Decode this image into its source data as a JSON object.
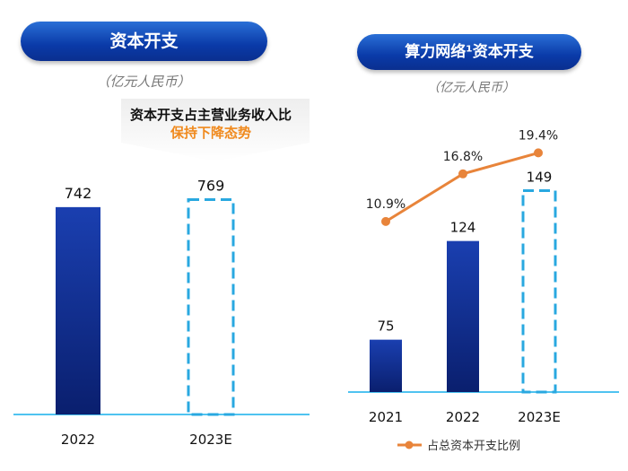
{
  "left": {
    "title": "资本开支",
    "unit": "（亿元人民币）",
    "note_line1": "资本开支占主营业务收入比",
    "note_line2": "保持下降态势"
  },
  "right": {
    "title": "算力网络¹资本开支",
    "unit": "（亿元人民币）",
    "legend": "占总资本开支比例"
  },
  "colors": {
    "bar": "#0d2a8a",
    "dashed": "#29a8e0",
    "line": "#e8843a",
    "note2": "#f08a1e"
  },
  "chart_data": [
    {
      "type": "bar",
      "categories": [
        "2022",
        "2023E"
      ],
      "values": [
        742,
        769
      ],
      "labels": [
        "742",
        "769"
      ],
      "styles": [
        "solid",
        "dashed"
      ]
    },
    {
      "type": "bar+line",
      "categories": [
        "2021",
        "2022",
        "2023E"
      ],
      "values": [
        75,
        124,
        149
      ],
      "labels": [
        "75",
        "124",
        "149"
      ],
      "styles": [
        "solid",
        "solid",
        "dashed"
      ],
      "line": {
        "name": "占总资本开支比例",
        "values": [
          10.9,
          16.8,
          19.4
        ],
        "labels": [
          "10.9%",
          "16.8%",
          "19.4%"
        ]
      }
    }
  ]
}
